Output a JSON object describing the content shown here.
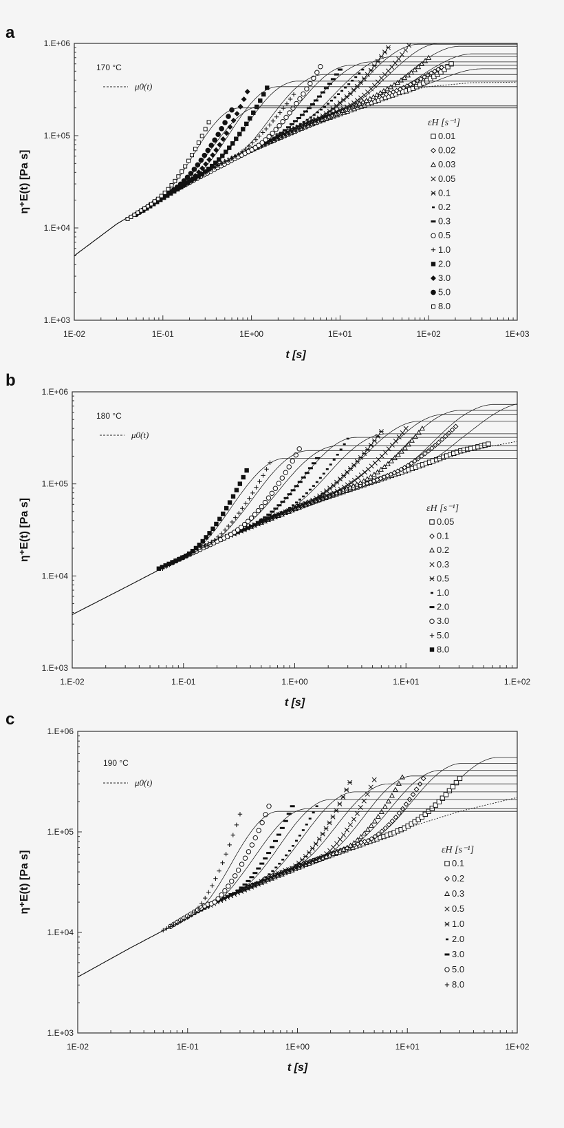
{
  "colors": {
    "background": "#f5f5f5",
    "ink": "#111111"
  },
  "chart_data": [
    {
      "panel": "a",
      "type": "line",
      "xscale": "log",
      "yscale": "log",
      "xlim": [
        0.01,
        1000
      ],
      "ylim": [
        1000,
        1000000
      ],
      "xticks": [
        "1E-02",
        "1E-01",
        "1E+00",
        "1E+01",
        "1E+02",
        "1E+03"
      ],
      "yticks": [
        "1.E+06",
        "1.E+05",
        "1.E+04",
        "1.E+03"
      ],
      "xlabel": "t [s]",
      "ylabel": "η⁺E(t) [Pa s]",
      "temperature": "170 °C",
      "envelope_label": "μ0(t)",
      "legend_title": "ε̇H [s⁻¹]",
      "legend_placement": "right",
      "envelope": [
        [
          0.01,
          5000
        ],
        [
          0.03,
          11000
        ],
        [
          0.1,
          22000
        ],
        [
          0.3,
          40000
        ],
        [
          1,
          70000
        ],
        [
          3,
          120000
        ],
        [
          10,
          190000
        ],
        [
          30,
          270000
        ],
        [
          100,
          340000
        ],
        [
          300,
          375000
        ],
        [
          1000,
          380000
        ]
      ],
      "series": [
        {
          "name": "0.01",
          "marker": "square-open",
          "points": [
            [
              2,
              100000
            ],
            [
              50,
              300000
            ],
            [
              180,
              600000
            ]
          ],
          "fit_plateau": 530000
        },
        {
          "name": "0.02",
          "marker": "diamond-open",
          "points": [
            [
              1,
              70000
            ],
            [
              25,
              255000
            ],
            [
              140,
              550000
            ]
          ],
          "fit_plateau": 770000
        },
        {
          "name": "0.03",
          "marker": "triangle-open",
          "points": [
            [
              0.6,
              57000
            ],
            [
              16,
              220000
            ],
            [
              100,
              700000
            ]
          ],
          "fit_plateau": 930000
        },
        {
          "name": "0.05",
          "marker": "x",
          "points": [
            [
              0.4,
              47000
            ],
            [
              10,
              190000
            ],
            [
              60,
              950000
            ]
          ],
          "fit_plateau": 1000000
        },
        {
          "name": "0.1",
          "marker": "asterisk",
          "points": [
            [
              0.3,
              40000
            ],
            [
              5,
              150000
            ],
            [
              35,
              900000
            ]
          ],
          "fit_plateau": 980000
        },
        {
          "name": "0.2",
          "marker": "dash-short",
          "points": [
            [
              0.2,
              32000
            ],
            [
              2.5,
              110000
            ],
            [
              18,
              520000
            ]
          ],
          "fit_plateau": 720000
        },
        {
          "name": "0.3",
          "marker": "dash-long",
          "points": [
            [
              0.15,
              28000
            ],
            [
              1.6,
              88000
            ],
            [
              10,
              520000
            ]
          ],
          "fit_plateau": 630000
        },
        {
          "name": "0.5",
          "marker": "circle-open",
          "points": [
            [
              0.1,
              22000
            ],
            [
              1,
              70000
            ],
            [
              6,
              560000
            ]
          ],
          "fit_plateau": 580000
        },
        {
          "name": "1.0",
          "marker": "plus",
          "points": [
            [
              0.07,
              18000
            ],
            [
              0.5,
              52000
            ],
            [
              3,
              280000
            ]
          ],
          "fit_plateau": 460000
        },
        {
          "name": "2.0",
          "marker": "square-filled",
          "points": [
            [
              0.06,
              15500
            ],
            [
              0.25,
              36000
            ],
            [
              1.5,
              330000
            ]
          ],
          "fit_plateau": 390000
        },
        {
          "name": "3.0",
          "marker": "diamond-filled",
          "points": [
            [
              0.06,
              15500
            ],
            [
              0.18,
              31000
            ],
            [
              0.9,
              300000
            ]
          ],
          "fit_plateau": 340000
        },
        {
          "name": "5.0",
          "marker": "circle-filled",
          "points": [
            [
              0.05,
              14000
            ],
            [
              0.12,
              24000
            ],
            [
              0.6,
              190000
            ]
          ],
          "fit_plateau": 210000
        },
        {
          "name": "8.0",
          "marker": "square-open-small",
          "points": [
            [
              0.04,
              12500
            ],
            [
              0.08,
              19000
            ],
            [
              0.33,
              140000
            ]
          ],
          "fit_plateau": 200000
        }
      ]
    },
    {
      "panel": "b",
      "type": "line",
      "xscale": "log",
      "yscale": "log",
      "xlim": [
        0.01,
        100
      ],
      "ylim": [
        1000,
        1000000
      ],
      "xticks": [
        "1.E-02",
        "1.E-01",
        "1.E+00",
        "1.E+01",
        "1.E+02"
      ],
      "yticks": [
        "1.E+06",
        "1.E+05",
        "1.E+04",
        "1.E+03"
      ],
      "xlabel": "t [s]",
      "ylabel": "η⁺E(t) [Pa s]",
      "temperature": "180 °C",
      "envelope_label": "μ0(t)",
      "legend_title": "ε̇H [s⁻¹]",
      "legend_placement": "right",
      "envelope": [
        [
          0.01,
          3800
        ],
        [
          0.03,
          7500
        ],
        [
          0.1,
          16000
        ],
        [
          0.3,
          30000
        ],
        [
          1,
          55000
        ],
        [
          3,
          90000
        ],
        [
          10,
          140000
        ],
        [
          30,
          220000
        ],
        [
          100,
          290000
        ]
      ],
      "series": [
        {
          "name": "0.05",
          "marker": "square-open",
          "points": [
            [
              1,
              55000
            ],
            [
              12,
              150000
            ],
            [
              55,
              270000
            ]
          ],
          "fit_plateau": 760000
        },
        {
          "name": "0.1",
          "marker": "diamond-open",
          "points": [
            [
              0.5,
              40000
            ],
            [
              6,
              115000
            ],
            [
              28,
              420000
            ]
          ],
          "fit_plateau": 730000
        },
        {
          "name": "0.2",
          "marker": "triangle-open",
          "points": [
            [
              0.3,
              30000
            ],
            [
              3,
              90000
            ],
            [
              14,
              400000
            ]
          ],
          "fit_plateau": 630000
        },
        {
          "name": "0.3",
          "marker": "x",
          "points": [
            [
              0.2,
              24000
            ],
            [
              2,
              75000
            ],
            [
              10,
              400000
            ]
          ],
          "fit_plateau": 570000
        },
        {
          "name": "0.5",
          "marker": "asterisk",
          "points": [
            [
              0.15,
              21000
            ],
            [
              1.2,
              60000
            ],
            [
              6,
              370000
            ]
          ],
          "fit_plateau": 480000
        },
        {
          "name": "1.0",
          "marker": "dash-short",
          "points": [
            [
              0.1,
              16000
            ],
            [
              0.7,
              47000
            ],
            [
              3,
              310000
            ]
          ],
          "fit_plateau": 350000
        },
        {
          "name": "2.0",
          "marker": "dash-long",
          "points": [
            [
              0.09,
              15000
            ],
            [
              0.4,
              34000
            ],
            [
              1.6,
              190000
            ]
          ],
          "fit_plateau": 320000
        },
        {
          "name": "3.0",
          "marker": "circle-open",
          "points": [
            [
              0.08,
              14000
            ],
            [
              0.25,
              27000
            ],
            [
              1.1,
              240000
            ]
          ],
          "fit_plateau": 260000
        },
        {
          "name": "5.0",
          "marker": "plus",
          "points": [
            [
              0.065,
              12000
            ],
            [
              0.15,
              21000
            ],
            [
              0.6,
              170000
            ]
          ],
          "fit_plateau": 230000
        },
        {
          "name": "8.0",
          "marker": "square-filled",
          "points": [
            [
              0.06,
              12000
            ],
            [
              0.1,
              16000
            ],
            [
              0.37,
              140000
            ]
          ],
          "fit_plateau": 190000
        }
      ]
    },
    {
      "panel": "c",
      "type": "line",
      "xscale": "log",
      "yscale": "log",
      "xlim": [
        0.01,
        100
      ],
      "ylim": [
        1000,
        1000000
      ],
      "xticks": [
        "1E-02",
        "1E-01",
        "1E+00",
        "1E+01",
        "1E+02"
      ],
      "yticks": [
        "1.E+06",
        "1.E+05",
        "1.E+04",
        "1.E+03"
      ],
      "xlabel": "t [s]",
      "ylabel": "η⁺E(t) [Pa s]",
      "temperature": "190 °C",
      "envelope_label": "μ0(t)",
      "legend_title": "ε̇H [s⁻¹]",
      "legend_placement": "right",
      "envelope": [
        [
          0.01,
          3600
        ],
        [
          0.03,
          7000
        ],
        [
          0.1,
          14000
        ],
        [
          0.3,
          26000
        ],
        [
          1,
          45000
        ],
        [
          3,
          70000
        ],
        [
          10,
          110000
        ],
        [
          30,
          160000
        ],
        [
          100,
          220000
        ]
      ],
      "series": [
        {
          "name": "0.1",
          "marker": "square-open",
          "points": [
            [
              1,
              45000
            ],
            [
              8,
              100000
            ],
            [
              30,
              340000
            ]
          ],
          "fit_plateau": 550000
        },
        {
          "name": "0.2",
          "marker": "diamond-open",
          "points": [
            [
              0.5,
              34000
            ],
            [
              4,
              80000
            ],
            [
              14,
              340000
            ]
          ],
          "fit_plateau": 480000
        },
        {
          "name": "0.3",
          "marker": "triangle-open",
          "points": [
            [
              0.3,
              26000
            ],
            [
              2.5,
              65000
            ],
            [
              9,
              350000
            ]
          ],
          "fit_plateau": 410000
        },
        {
          "name": "0.5",
          "marker": "x",
          "points": [
            [
              0.2,
              21000
            ],
            [
              1.5,
              53000
            ],
            [
              5,
              330000
            ]
          ],
          "fit_plateau": 360000
        },
        {
          "name": "1.0",
          "marker": "asterisk",
          "points": [
            [
              0.15,
              18000
            ],
            [
              0.8,
              42000
            ],
            [
              3,
              310000
            ]
          ],
          "fit_plateau": 300000
        },
        {
          "name": "2.0",
          "marker": "dash-short",
          "points": [
            [
              0.1,
              14000
            ],
            [
              0.4,
              31000
            ],
            [
              1.5,
              180000
            ]
          ],
          "fit_plateau": 250000
        },
        {
          "name": "3.0",
          "marker": "dash-long",
          "points": [
            [
              0.08,
              12500
            ],
            [
              0.25,
              24000
            ],
            [
              0.9,
              180000
            ]
          ],
          "fit_plateau": 210000
        },
        {
          "name": "5.0",
          "marker": "circle-open",
          "points": [
            [
              0.07,
              11500
            ],
            [
              0.15,
              19000
            ],
            [
              0.55,
              180000
            ]
          ],
          "fit_plateau": 170000
        },
        {
          "name": "8.0",
          "marker": "plus",
          "points": [
            [
              0.06,
              10500
            ],
            [
              0.1,
              14000
            ],
            [
              0.3,
              150000
            ]
          ],
          "fit_plateau": 160000
        }
      ]
    }
  ]
}
